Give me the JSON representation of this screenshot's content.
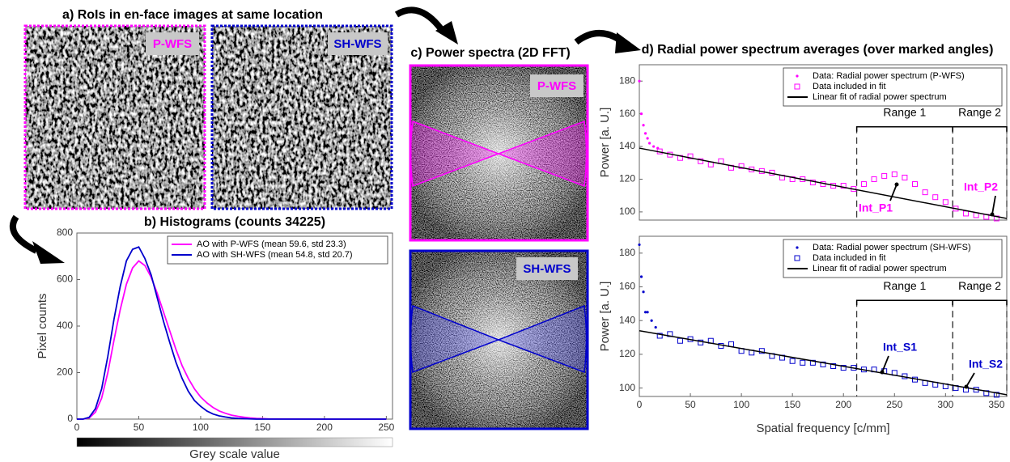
{
  "panels": {
    "a": {
      "title": "a) RoIs in en-face images at same location",
      "labels": [
        "P-WFS",
        "SH-WFS"
      ]
    },
    "c": {
      "title": "c) Power spectra (2D FFT)",
      "labels": [
        "P-WFS",
        "SH-WFS"
      ]
    },
    "d": {
      "title": "d) Radial power spectrum averages (over marked angles)"
    }
  },
  "chart_data": [
    {
      "type": "line",
      "title": "b) Histograms (counts 34225)",
      "ylabel": "Pixel counts",
      "xlabel": "Grey scale value",
      "xlim": [
        0,
        255
      ],
      "xticks": [
        0,
        50,
        100,
        150,
        200,
        250
      ],
      "ylim": [
        0,
        800
      ],
      "yticks": [
        0,
        200,
        400,
        600,
        800
      ],
      "legend": "upper right",
      "x": [
        0,
        5,
        10,
        15,
        20,
        25,
        30,
        35,
        40,
        45,
        50,
        55,
        60,
        65,
        70,
        75,
        80,
        85,
        90,
        95,
        100,
        105,
        110,
        115,
        120,
        125,
        130,
        135,
        140,
        145,
        150,
        155,
        160,
        200,
        250
      ],
      "series": [
        {
          "name": "AO with P-WFS (mean 59.6, std 23.3)",
          "color": "#ff00ff",
          "values": [
            0,
            0,
            5,
            30,
            90,
            200,
            340,
            470,
            580,
            650,
            680,
            660,
            610,
            540,
            460,
            380,
            300,
            230,
            175,
            130,
            95,
            70,
            50,
            35,
            25,
            17,
            12,
            8,
            5,
            3,
            2,
            1,
            1,
            0,
            0
          ]
        },
        {
          "name": "AO with SH-WFS (mean 54.8, std 20.7)",
          "color": "#0000cc",
          "values": [
            0,
            0,
            8,
            45,
            130,
            270,
            430,
            570,
            680,
            730,
            740,
            690,
            620,
            520,
            420,
            330,
            245,
            175,
            120,
            80,
            55,
            35,
            22,
            14,
            9,
            5,
            3,
            2,
            1,
            0,
            0,
            0,
            0,
            0,
            0
          ]
        }
      ]
    },
    {
      "type": "scatter",
      "ylabel": "Power [a. U.]",
      "xlim": [
        0,
        360
      ],
      "ylim": [
        95,
        190
      ],
      "yticks": [
        100,
        120,
        140,
        160,
        180
      ],
      "legend": "upper right",
      "ranges": [
        {
          "label": "Range 1",
          "from": 213,
          "to": 307
        },
        {
          "label": "Range 2",
          "from": 307,
          "to": 360
        }
      ],
      "annotations": [
        "Int_P1",
        "Int_P2"
      ],
      "series": [
        {
          "name": "Data: Radial power spectrum (P-WFS)",
          "color": "#ff00ff",
          "marker": "dot",
          "x": [
            0,
            2,
            4,
            6,
            8,
            10,
            14,
            18
          ],
          "values": [
            180,
            160,
            153,
            148,
            145,
            142,
            140,
            139
          ]
        },
        {
          "name": "Data included in fit",
          "color": "#ff00ff",
          "marker": "square",
          "x": [
            20,
            30,
            40,
            50,
            60,
            70,
            80,
            90,
            100,
            110,
            120,
            130,
            140,
            150,
            160,
            170,
            180,
            190,
            200,
            210,
            220,
            230,
            240,
            250,
            260,
            270,
            280,
            290,
            300,
            310,
            320,
            330,
            340,
            350
          ],
          "values": [
            137,
            135,
            133,
            134,
            131,
            129,
            131,
            127,
            128,
            126,
            125,
            124,
            121,
            120,
            120,
            118,
            117,
            116,
            116,
            114,
            117,
            120,
            122,
            123,
            121,
            117,
            112,
            109,
            106,
            102,
            99,
            98,
            97,
            96
          ]
        },
        {
          "name": "Linear fit of radial power spectrum",
          "color": "#000000",
          "marker": "line",
          "x": [
            0,
            360
          ],
          "values": [
            139,
            96
          ]
        }
      ]
    },
    {
      "type": "scatter",
      "ylabel": "Power [a. U.]",
      "xlabel": "Spatial frequency [c/mm]",
      "xlim": [
        0,
        360
      ],
      "xticks": [
        0,
        50,
        100,
        150,
        200,
        250,
        300,
        350
      ],
      "ylim": [
        95,
        190
      ],
      "yticks": [
        100,
        120,
        140,
        160,
        180
      ],
      "legend": "upper right",
      "ranges": [
        {
          "label": "Range 1",
          "from": 213,
          "to": 307
        },
        {
          "label": "Range 2",
          "from": 307,
          "to": 360
        }
      ],
      "annotations": [
        "Int_S1",
        "Int_S2"
      ],
      "series": [
        {
          "name": "Data: Radial power spectrum (SH-WFS)",
          "color": "#0000cc",
          "marker": "dot",
          "x": [
            0,
            2,
            4,
            6,
            8,
            12,
            16
          ],
          "values": [
            185,
            166,
            157,
            145,
            145,
            140,
            136
          ]
        },
        {
          "name": "Data included in fit",
          "color": "#0000cc",
          "marker": "square",
          "x": [
            20,
            30,
            40,
            50,
            60,
            70,
            80,
            90,
            100,
            110,
            120,
            130,
            140,
            150,
            160,
            170,
            180,
            190,
            200,
            210,
            220,
            230,
            240,
            250,
            260,
            270,
            280,
            290,
            300,
            310,
            320,
            330,
            340,
            350
          ],
          "values": [
            131,
            132,
            128,
            129,
            127,
            128,
            125,
            126,
            122,
            121,
            122,
            119,
            118,
            116,
            115,
            115,
            114,
            113,
            112,
            112,
            111,
            111,
            110,
            109,
            107,
            105,
            103,
            102,
            101,
            100,
            99,
            99,
            97,
            96
          ]
        },
        {
          "name": "Linear fit of radial power spectrum",
          "color": "#000000",
          "marker": "line",
          "x": [
            0,
            360
          ],
          "values": [
            134,
            96
          ]
        }
      ]
    }
  ]
}
